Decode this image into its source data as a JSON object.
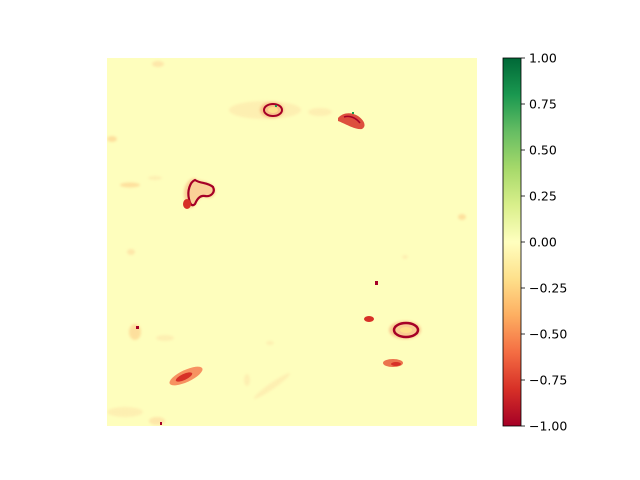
{
  "chart_data": {
    "type": "heatmap",
    "title": "",
    "xlabel": "",
    "ylabel": "",
    "axes_visible": false,
    "colormap": "RdYlGn",
    "value_range": [
      -1.0,
      1.0
    ],
    "background_value": 0.0,
    "colorbar": {
      "orientation": "vertical",
      "position": "right",
      "ticks": [
        1.0,
        0.75,
        0.5,
        0.25,
        0.0,
        -0.25,
        -0.5,
        -0.75,
        -1.0
      ],
      "tick_labels": [
        "1.00",
        "0.75",
        "0.50",
        "0.25",
        "0.00",
        "−0.25",
        "−0.50",
        "−0.75",
        "−1.00"
      ]
    },
    "features": [
      {
        "id": "ring-top-center",
        "value_min": -1.0,
        "value_max": 0.3
      },
      {
        "id": "blob-top-right",
        "value_min": -0.95,
        "value_max": -0.45
      },
      {
        "id": "ring-left",
        "value_min": -1.0,
        "value_max": -0.45
      },
      {
        "id": "ring-lower-right",
        "value_min": -1.0,
        "value_max": -0.35
      },
      {
        "id": "streak-bottom-left",
        "value_min": -0.8,
        "value_max": -0.3
      },
      {
        "id": "small-lower-right",
        "value_min": -0.7,
        "value_max": -0.3
      },
      {
        "id": "faint-streaks",
        "value_min": -0.3,
        "value_max": -0.05
      }
    ]
  }
}
